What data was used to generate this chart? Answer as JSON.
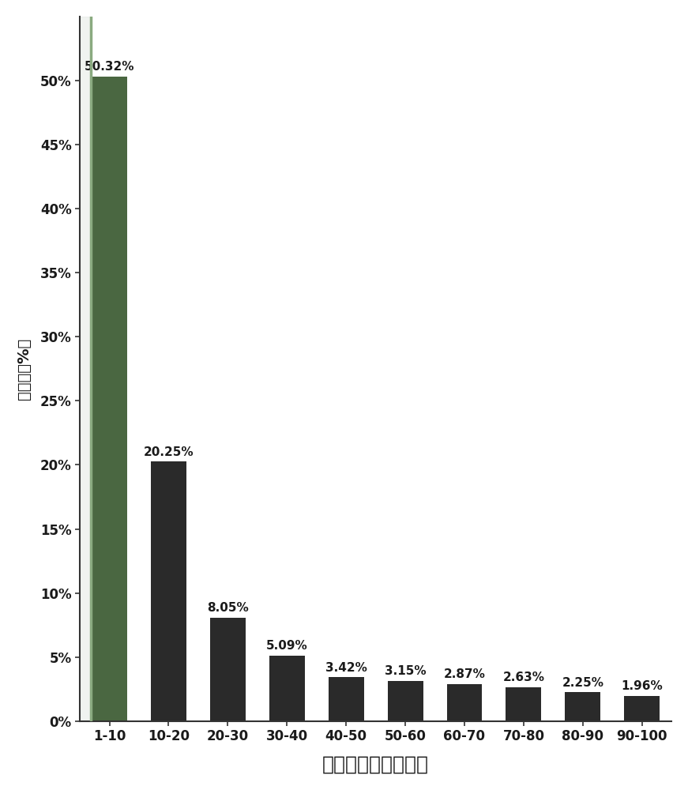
{
  "categories": [
    "1-10",
    "10-20",
    "20-30",
    "30-40",
    "40-50",
    "50-60",
    "60-70",
    "70-80",
    "80-90",
    "90-100"
  ],
  "values": [
    50.32,
    20.25,
    8.05,
    5.09,
    3.42,
    3.15,
    2.87,
    2.63,
    2.25,
    1.96
  ],
  "labels": [
    "50.32%",
    "20.25%",
    "8.05%",
    "5.09%",
    "3.42%",
    "3.15%",
    "2.87%",
    "2.63%",
    "2.25%",
    "1.96%"
  ],
  "bar_color": "#2a2a2a",
  "first_bar_color": "#4a6741",
  "xlabel": "制动踏板开度百分比",
  "ylabel": "百分比（%）",
  "ylim": [
    0,
    55
  ],
  "ytick_values": [
    0,
    5,
    10,
    15,
    20,
    25,
    30,
    35,
    40,
    45,
    50
  ],
  "ytick_labels": [
    "0%",
    "5%",
    "10%",
    "15%",
    "20%",
    "25%",
    "30%",
    "35%",
    "40%",
    "45%",
    "50%"
  ],
  "background_color": "#ffffff",
  "plot_bg_color": "#ffffff",
  "bar_width": 0.6,
  "xlabel_fontsize": 18,
  "ylabel_fontsize": 14,
  "label_fontsize": 11,
  "tick_fontsize": 12,
  "left_margin_color": "#d0d8d0",
  "left_line_color": "#8aaa80"
}
